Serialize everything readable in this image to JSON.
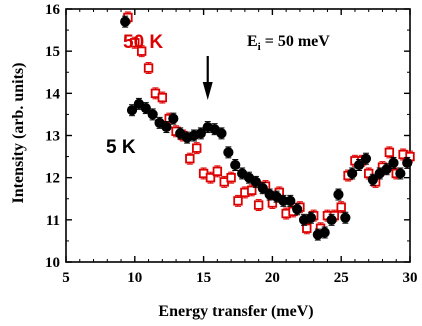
{
  "chart_data": {
    "type": "scatter",
    "title": "",
    "xlabel": "Energy transfer (meV)",
    "ylabel": "Intensity (arb. units)",
    "xlim": [
      5,
      30
    ],
    "ylim": [
      10,
      16
    ],
    "xticks": [
      5,
      10,
      15,
      20,
      25,
      30
    ],
    "yticks": [
      10,
      11,
      12,
      13,
      14,
      15,
      16
    ],
    "grid": false,
    "annotations": {
      "label_50K": "50 K",
      "label_5K": "5 K",
      "energy_label": "E",
      "energy_sub": "i",
      "energy_value": " = 50 meV",
      "arrow_x": 15.3
    },
    "series": [
      {
        "name": "5 K",
        "marker": "filled-circle",
        "color": "#000000",
        "x": [
          9.3,
          9.8,
          10.3,
          10.8,
          11.3,
          11.8,
          12.3,
          12.8,
          13.3,
          13.8,
          14.3,
          14.8,
          15.3,
          15.8,
          16.3,
          16.8,
          17.3,
          17.8,
          18.3,
          18.8,
          19.3,
          19.8,
          20.3,
          20.8,
          21.3,
          21.8,
          22.3,
          22.8,
          23.3,
          23.8,
          24.3,
          24.8,
          25.3,
          25.8,
          26.3,
          26.8,
          27.3,
          27.8,
          28.3,
          28.8,
          29.3,
          29.8
        ],
        "y": [
          15.7,
          13.6,
          13.75,
          13.65,
          13.5,
          13.3,
          13.2,
          13.4,
          13.05,
          12.95,
          13.0,
          13.05,
          13.2,
          13.15,
          13.05,
          12.6,
          12.3,
          12.1,
          12.0,
          11.9,
          11.75,
          11.6,
          11.55,
          11.45,
          11.45,
          11.25,
          11.0,
          11.05,
          10.65,
          10.7,
          11.0,
          11.6,
          11.05,
          12.1,
          12.3,
          12.45,
          11.95,
          12.1,
          12.2,
          12.35,
          12.1,
          12.35
        ]
      },
      {
        "name": "50 K",
        "marker": "open-square",
        "color": "#dd0000",
        "x": [
          9.5,
          10.0,
          10.5,
          11.0,
          11.5,
          12.0,
          12.5,
          13.0,
          13.5,
          14.0,
          14.5,
          15.0,
          15.5,
          16.0,
          16.5,
          17.0,
          17.5,
          18.0,
          18.5,
          19.0,
          19.5,
          20.0,
          20.5,
          21.0,
          21.5,
          22.0,
          22.5,
          23.0,
          23.5,
          24.0,
          24.5,
          25.0,
          25.5,
          26.0,
          26.5,
          27.0,
          27.5,
          28.0,
          28.5,
          29.0,
          29.5,
          30.0
        ],
        "y": [
          15.8,
          15.2,
          15.0,
          14.6,
          14.0,
          13.9,
          13.4,
          13.1,
          13.0,
          12.45,
          12.7,
          12.1,
          12.0,
          12.15,
          11.9,
          12.0,
          11.45,
          11.65,
          11.7,
          11.35,
          11.8,
          11.4,
          11.65,
          11.15,
          11.2,
          11.3,
          10.8,
          11.1,
          10.8,
          11.1,
          11.1,
          11.3,
          12.05,
          12.4,
          12.4,
          12.1,
          11.9,
          12.25,
          12.6,
          12.1,
          12.55,
          12.5
        ]
      }
    ]
  }
}
